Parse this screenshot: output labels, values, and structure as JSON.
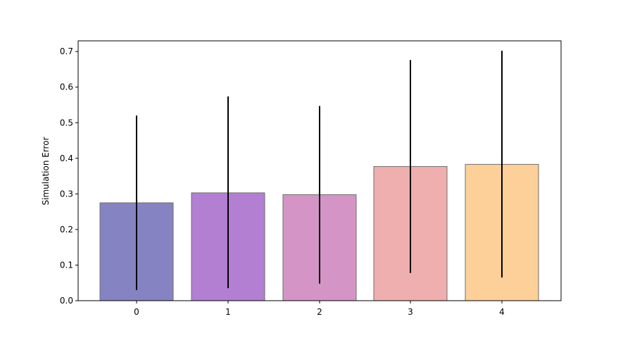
{
  "chart_data": {
    "type": "bar",
    "title": "",
    "xlabel": "",
    "ylabel": "Simulation Error",
    "categories": [
      "0",
      "1",
      "2",
      "3",
      "4"
    ],
    "values": [
      0.275,
      0.303,
      0.298,
      0.377,
      0.383
    ],
    "error_low": [
      0.03,
      0.035,
      0.048,
      0.078,
      0.065
    ],
    "error_high": [
      0.52,
      0.574,
      0.547,
      0.676,
      0.702
    ],
    "bar_colors": [
      "#8683c3",
      "#b37fd3",
      "#d494c6",
      "#efafaf",
      "#fcd098"
    ],
    "error_color": "#000000",
    "ylim": [
      0,
      0.73
    ],
    "yticks": [
      "0.0",
      "0.1",
      "0.2",
      "0.3",
      "0.4",
      "0.5",
      "0.6",
      "0.7"
    ],
    "grid": false,
    "legend": "none"
  }
}
